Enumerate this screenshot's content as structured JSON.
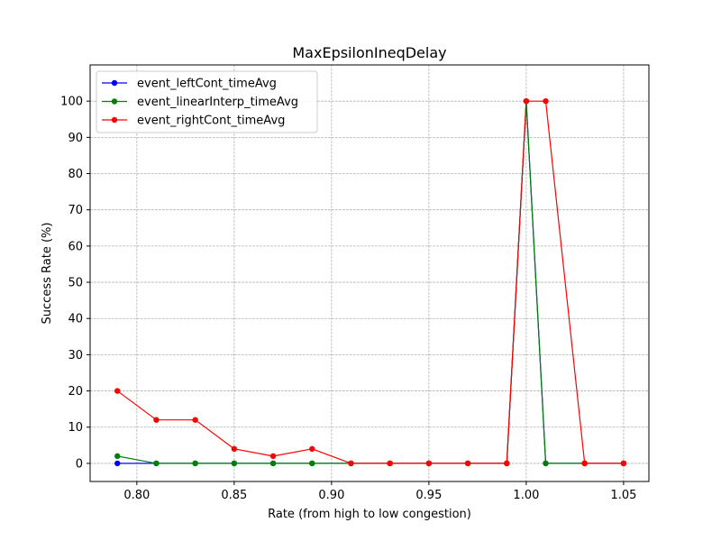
{
  "chart_data": {
    "type": "line",
    "title": "MaxEpsilonIneqDelay",
    "xlabel": "Rate (from high to low congestion)",
    "ylabel": "Success Rate (%)",
    "xlim": [
      0.776,
      1.063
    ],
    "ylim": [
      -5,
      110
    ],
    "xticks": [
      0.8,
      0.85,
      0.9,
      0.95,
      1.0,
      1.05
    ],
    "xtick_labels": [
      "0.80",
      "0.85",
      "0.90",
      "0.95",
      "1.00",
      "1.05"
    ],
    "yticks": [
      0,
      10,
      20,
      30,
      40,
      50,
      60,
      70,
      80,
      90,
      100
    ],
    "ytick_labels": [
      "0",
      "10",
      "20",
      "30",
      "40",
      "50",
      "60",
      "70",
      "80",
      "90",
      "100"
    ],
    "grid": true,
    "legend_position": "upper-left",
    "x": [
      0.79,
      0.81,
      0.83,
      0.85,
      0.87,
      0.89,
      0.91,
      0.93,
      0.95,
      0.97,
      0.99,
      1.0,
      1.01,
      1.03,
      1.05
    ],
    "series": [
      {
        "name": "event_leftCont_timeAvg",
        "color": "#0000ff",
        "values": [
          0,
          0,
          0,
          0,
          0,
          0,
          0,
          0,
          0,
          0,
          0,
          100,
          0,
          0,
          0
        ]
      },
      {
        "name": "event_linearInterp_timeAvg",
        "color": "#008000",
        "values": [
          2,
          0,
          0,
          0,
          0,
          0,
          0,
          0,
          0,
          0,
          0,
          100,
          0,
          0,
          0
        ]
      },
      {
        "name": "event_rightCont_timeAvg",
        "color": "#ff0000",
        "values": [
          20,
          12,
          12,
          4,
          2,
          4,
          0,
          0,
          0,
          0,
          0,
          100,
          100,
          0,
          0
        ]
      }
    ]
  }
}
